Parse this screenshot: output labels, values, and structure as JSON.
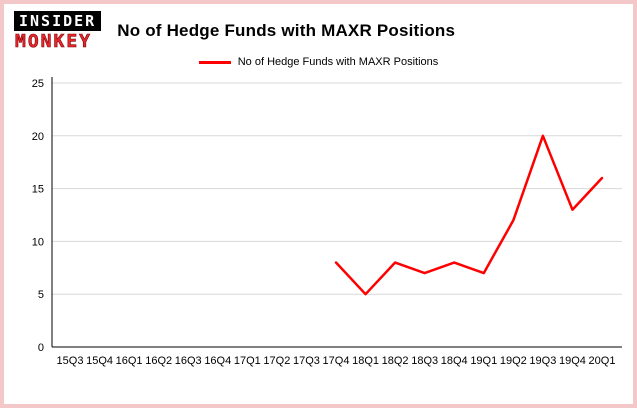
{
  "header": {
    "logo": {
      "line1": "INSIDER",
      "line2": "MONKEY"
    },
    "title": "No of Hedge Funds with MAXR Positions"
  },
  "legend": {
    "label": "No of Hedge Funds with MAXR Positions"
  },
  "colors": {
    "series": "#ff0000",
    "border": "#f4c8c8",
    "grid": "#d8d8d8",
    "axis": "#000000",
    "logo_red": "#e8262d"
  },
  "chart_data": {
    "type": "line",
    "title": "No of Hedge Funds with MAXR Positions",
    "categories": [
      "15Q3",
      "15Q4",
      "16Q1",
      "16Q2",
      "16Q3",
      "16Q4",
      "17Q1",
      "17Q2",
      "17Q3",
      "17Q4",
      "18Q1",
      "18Q2",
      "18Q3",
      "18Q4",
      "19Q1",
      "19Q2",
      "19Q3",
      "19Q4",
      "20Q1"
    ],
    "values": [
      null,
      null,
      null,
      null,
      null,
      null,
      null,
      null,
      null,
      8,
      5,
      8,
      7,
      8,
      7,
      12,
      20,
      13,
      16
    ],
    "xlabel": "",
    "ylabel": "",
    "ylim": [
      0,
      25
    ],
    "yticks": [
      0,
      5,
      10,
      15,
      20,
      25
    ],
    "grid": true,
    "legend_entries": [
      "No of Hedge Funds with MAXR Positions"
    ],
    "legend_position": "top"
  }
}
